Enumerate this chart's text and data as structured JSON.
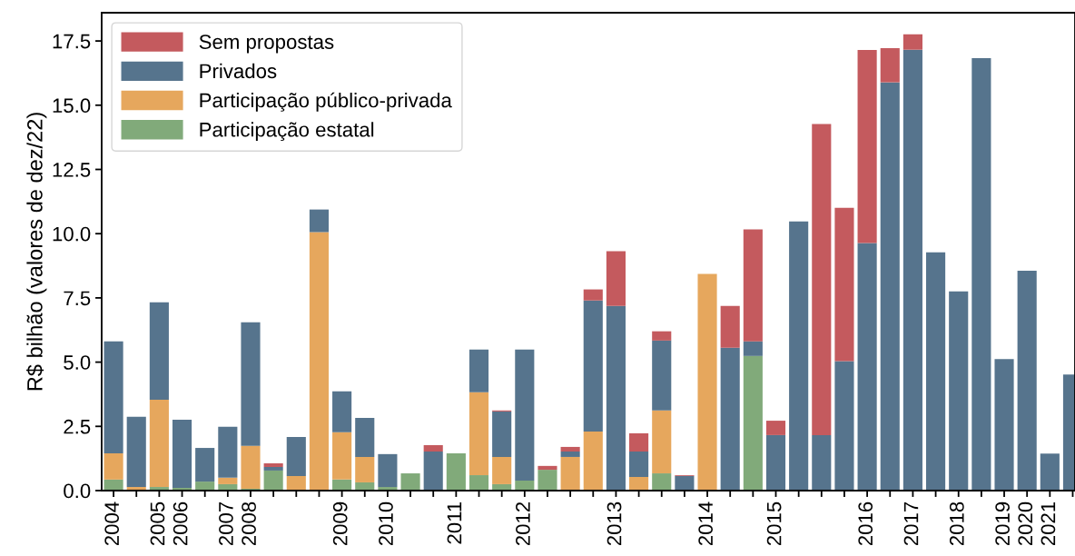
{
  "chart_data": {
    "type": "bar",
    "stacked": true,
    "ylabel": "R$ bilhão (valores de dez/22)",
    "categories": [
      "2004",
      null,
      "2005",
      "2006",
      null,
      "2007",
      "2008",
      null,
      null,
      null,
      "2009",
      null,
      "2010",
      null,
      null,
      "2011",
      null,
      null,
      "2012",
      null,
      null,
      null,
      "2013",
      null,
      null,
      null,
      "2014",
      null,
      null,
      "2015",
      null,
      null,
      null,
      "2016",
      null,
      "2017",
      null,
      "2018",
      null,
      "2019",
      "2020",
      "2021",
      null
    ],
    "series": [
      {
        "name": "Participação estatal",
        "color": "#81aa7a",
        "values": [
          0.43,
          null,
          0.14,
          0.11,
          0.35,
          0.25,
          0.07,
          0.78,
          null,
          null,
          0.43,
          0.32,
          0.14,
          0.67,
          null,
          1.45,
          0.6,
          0.25,
          0.39,
          0.81,
          null,
          null,
          null,
          null,
          0.67,
          null,
          null,
          null,
          5.24,
          null,
          null,
          null,
          null,
          null,
          null,
          null,
          null,
          null,
          null,
          null,
          null,
          null,
          null
        ]
      },
      {
        "name": "Participação público-privada",
        "color": "#e6a75d",
        "values": [
          1.02,
          0.14,
          3.4,
          null,
          null,
          0.25,
          1.67,
          null,
          0.57,
          10.06,
          1.84,
          0.99,
          null,
          null,
          null,
          null,
          3.23,
          1.06,
          null,
          null,
          1.31,
          2.3,
          null,
          0.53,
          2.45,
          null,
          8.43,
          null,
          null,
          null,
          null,
          null,
          null,
          null,
          null,
          null,
          null,
          null,
          null,
          null,
          null,
          null,
          null
        ]
      },
      {
        "name": "Privados",
        "color": "#56748d",
        "values": [
          4.36,
          2.73,
          3.79,
          2.65,
          1.31,
          1.98,
          4.81,
          0.14,
          1.52,
          0.88,
          1.59,
          1.52,
          1.28,
          null,
          1.52,
          null,
          1.66,
          1.77,
          5.1,
          null,
          0.21,
          5.1,
          7.19,
          0.99,
          2.72,
          0.57,
          null,
          5.56,
          0.57,
          2.16,
          10.48,
          2.16,
          5.04,
          9.64,
          15.89,
          17.16,
          9.27,
          7.75,
          16.83,
          5.12,
          8.56,
          1.44,
          4.52
        ]
      },
      {
        "name": "Sem propostas",
        "color": "#c45a5e",
        "values": [
          null,
          null,
          null,
          null,
          null,
          null,
          null,
          0.14,
          null,
          null,
          null,
          null,
          null,
          null,
          0.25,
          null,
          null,
          0.04,
          null,
          0.15,
          0.18,
          0.43,
          2.13,
          0.71,
          0.36,
          0.03,
          null,
          1.63,
          4.36,
          0.56,
          null,
          12.11,
          5.97,
          7.51,
          1.33,
          0.6,
          null,
          null,
          null,
          null,
          null,
          null,
          null
        ]
      }
    ],
    "ylim": [
      0,
      18.6
    ],
    "yticks": [
      {
        "value": 0,
        "label": "0.0"
      },
      {
        "value": 2.5,
        "label": "2.5"
      },
      {
        "value": 5,
        "label": "5.0"
      },
      {
        "value": 7.5,
        "label": "7.5"
      },
      {
        "value": 10,
        "label": "10.0"
      },
      {
        "value": 12.5,
        "label": "12.5"
      },
      {
        "value": 15,
        "label": "15.0"
      },
      {
        "value": 17.5,
        "label": "17.5"
      }
    ],
    "grid": false,
    "legend": "top left"
  }
}
